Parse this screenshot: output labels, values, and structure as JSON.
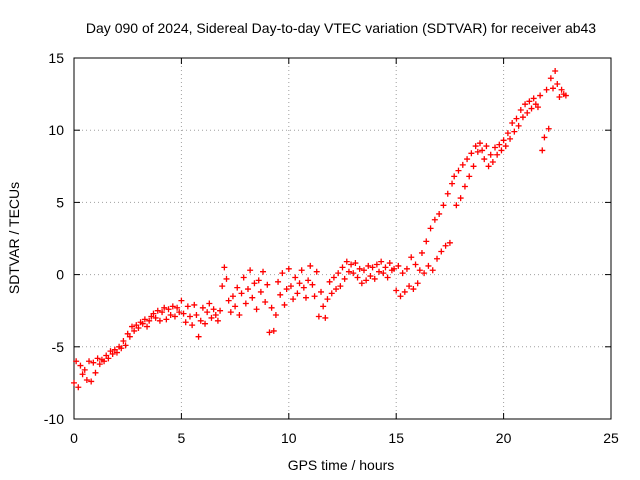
{
  "chart_data": {
    "type": "scatter",
    "title": "Day 090 of 2024, Sidereal Day-to-day VTEC variation (SDTVAR) for receiver ab43",
    "xlabel": "GPS time / hours",
    "ylabel": "SDTVAR / TECUs",
    "xlim": [
      0,
      25
    ],
    "ylim": [
      -10,
      15
    ],
    "xticks": [
      0,
      5,
      10,
      15,
      20,
      25
    ],
    "yticks": [
      -10,
      -5,
      0,
      5,
      10,
      15
    ],
    "xtick_labels": [
      "0",
      "5",
      "10",
      "15",
      "20",
      "25"
    ],
    "ytick_labels": [
      "-10",
      "-5",
      "0",
      "5",
      "10",
      "15"
    ],
    "grid": true,
    "marker": "+",
    "series": [
      {
        "name": "SDTVAR",
        "color": "#ff0000",
        "points": [
          [
            0.0,
            -7.5
          ],
          [
            0.1,
            -6.0
          ],
          [
            0.2,
            -7.8
          ],
          [
            0.3,
            -6.3
          ],
          [
            0.4,
            -6.9
          ],
          [
            0.5,
            -6.6
          ],
          [
            0.6,
            -7.3
          ],
          [
            0.7,
            -6.0
          ],
          [
            0.8,
            -7.4
          ],
          [
            0.9,
            -6.1
          ],
          [
            1.0,
            -6.8
          ],
          [
            1.1,
            -5.8
          ],
          [
            1.2,
            -6.2
          ],
          [
            1.3,
            -5.9
          ],
          [
            1.4,
            -6.0
          ],
          [
            1.5,
            -5.6
          ],
          [
            1.6,
            -5.8
          ],
          [
            1.7,
            -5.3
          ],
          [
            1.8,
            -5.5
          ],
          [
            1.9,
            -5.2
          ],
          [
            2.0,
            -5.4
          ],
          [
            2.1,
            -5.0
          ],
          [
            2.2,
            -5.1
          ],
          [
            2.3,
            -4.6
          ],
          [
            2.4,
            -4.9
          ],
          [
            2.5,
            -4.1
          ],
          [
            2.6,
            -4.3
          ],
          [
            2.7,
            -3.6
          ],
          [
            2.8,
            -3.9
          ],
          [
            2.9,
            -3.5
          ],
          [
            3.0,
            -3.7
          ],
          [
            3.1,
            -3.3
          ],
          [
            3.2,
            -3.4
          ],
          [
            3.3,
            -3.1
          ],
          [
            3.4,
            -3.6
          ],
          [
            3.5,
            -3.2
          ],
          [
            3.6,
            -2.9
          ],
          [
            3.7,
            -2.7
          ],
          [
            3.8,
            -3.0
          ],
          [
            3.9,
            -2.5
          ],
          [
            4.0,
            -3.2
          ],
          [
            4.1,
            -2.6
          ],
          [
            4.2,
            -2.3
          ],
          [
            4.3,
            -3.1
          ],
          [
            4.4,
            -2.4
          ],
          [
            4.5,
            -2.8
          ],
          [
            4.6,
            -2.2
          ],
          [
            4.7,
            -2.9
          ],
          [
            4.8,
            -2.3
          ],
          [
            4.9,
            -2.6
          ],
          [
            5.0,
            -1.8
          ],
          [
            5.1,
            -2.7
          ],
          [
            5.2,
            -3.3
          ],
          [
            5.3,
            -2.2
          ],
          [
            5.4,
            -2.9
          ],
          [
            5.5,
            -3.5
          ],
          [
            5.6,
            -2.1
          ],
          [
            5.7,
            -2.8
          ],
          [
            5.8,
            -4.3
          ],
          [
            5.9,
            -3.2
          ],
          [
            6.0,
            -2.3
          ],
          [
            6.1,
            -3.4
          ],
          [
            6.2,
            -2.6
          ],
          [
            6.3,
            -2.0
          ],
          [
            6.4,
            -3.0
          ],
          [
            6.5,
            -2.4
          ],
          [
            6.6,
            -2.8
          ],
          [
            6.7,
            -3.2
          ],
          [
            6.8,
            -2.5
          ],
          [
            6.9,
            -0.8
          ],
          [
            7.0,
            0.5
          ],
          [
            7.1,
            -0.3
          ],
          [
            7.2,
            -1.8
          ],
          [
            7.3,
            -2.6
          ],
          [
            7.4,
            -1.5
          ],
          [
            7.5,
            -2.2
          ],
          [
            7.6,
            -0.9
          ],
          [
            7.7,
            -2.8
          ],
          [
            7.8,
            -1.3
          ],
          [
            7.9,
            -0.2
          ],
          [
            8.0,
            -2.0
          ],
          [
            8.1,
            -1.0
          ],
          [
            8.2,
            0.3
          ],
          [
            8.3,
            -1.6
          ],
          [
            8.4,
            -0.6
          ],
          [
            8.5,
            -2.4
          ],
          [
            8.6,
            -0.4
          ],
          [
            8.7,
            -1.2
          ],
          [
            8.8,
            0.2
          ],
          [
            8.9,
            -1.9
          ],
          [
            9.0,
            -0.7
          ],
          [
            9.1,
            -4.0
          ],
          [
            9.2,
            -2.3
          ],
          [
            9.3,
            -3.9
          ],
          [
            9.4,
            -2.8
          ],
          [
            9.5,
            -0.5
          ],
          [
            9.6,
            -1.4
          ],
          [
            9.7,
            0.1
          ],
          [
            9.8,
            -2.1
          ],
          [
            9.9,
            -1.0
          ],
          [
            10.0,
            0.4
          ],
          [
            10.1,
            -0.8
          ],
          [
            10.2,
            -1.7
          ],
          [
            10.3,
            -0.2
          ],
          [
            10.4,
            -1.3
          ],
          [
            10.5,
            -0.6
          ],
          [
            10.6,
            0.3
          ],
          [
            10.7,
            -0.9
          ],
          [
            10.8,
            -1.6
          ],
          [
            10.9,
            -0.4
          ],
          [
            11.0,
            0.6
          ],
          [
            11.1,
            -0.7
          ],
          [
            11.2,
            -1.5
          ],
          [
            11.3,
            0.2
          ],
          [
            11.4,
            -2.9
          ],
          [
            11.5,
            -1.2
          ],
          [
            11.6,
            -2.2
          ],
          [
            11.7,
            -3.0
          ],
          [
            11.8,
            -1.7
          ],
          [
            11.9,
            -0.5
          ],
          [
            12.0,
            -1.3
          ],
          [
            12.1,
            -0.2
          ],
          [
            12.2,
            -1.0
          ],
          [
            12.3,
            0.1
          ],
          [
            12.4,
            -0.8
          ],
          [
            12.5,
            0.5
          ],
          [
            12.6,
            -0.3
          ],
          [
            12.7,
            0.9
          ],
          [
            12.8,
            0.2
          ],
          [
            12.9,
            0.7
          ],
          [
            13.0,
            0.1
          ],
          [
            13.1,
            0.8
          ],
          [
            13.2,
            -0.2
          ],
          [
            13.3,
            0.4
          ],
          [
            13.4,
            -0.6
          ],
          [
            13.5,
            0.3
          ],
          [
            13.6,
            -0.4
          ],
          [
            13.7,
            0.6
          ],
          [
            13.8,
            -0.1
          ],
          [
            13.9,
            0.5
          ],
          [
            14.0,
            -0.3
          ],
          [
            14.1,
            0.7
          ],
          [
            14.2,
            0.2
          ],
          [
            14.3,
            0.9
          ],
          [
            14.4,
            0.1
          ],
          [
            14.5,
            0.5
          ],
          [
            14.6,
            -0.2
          ],
          [
            14.7,
            0.8
          ],
          [
            14.8,
            0.3
          ],
          [
            14.9,
            0.4
          ],
          [
            15.0,
            -1.1
          ],
          [
            15.1,
            0.6
          ],
          [
            15.2,
            -1.5
          ],
          [
            15.3,
            0.1
          ],
          [
            15.4,
            -1.2
          ],
          [
            15.5,
            0.4
          ],
          [
            15.6,
            -0.8
          ],
          [
            15.7,
            1.2
          ],
          [
            15.8,
            -1.0
          ],
          [
            15.9,
            0.7
          ],
          [
            16.0,
            -0.6
          ],
          [
            16.1,
            0.3
          ],
          [
            16.2,
            1.5
          ],
          [
            16.3,
            0.1
          ],
          [
            16.4,
            2.3
          ],
          [
            16.5,
            0.6
          ],
          [
            16.6,
            3.2
          ],
          [
            16.7,
            0.3
          ],
          [
            16.8,
            3.8
          ],
          [
            16.9,
            1.1
          ],
          [
            17.0,
            4.2
          ],
          [
            17.1,
            1.6
          ],
          [
            17.2,
            4.8
          ],
          [
            17.3,
            2.0
          ],
          [
            17.4,
            5.6
          ],
          [
            17.5,
            2.2
          ],
          [
            17.6,
            6.3
          ],
          [
            17.7,
            6.8
          ],
          [
            17.8,
            4.8
          ],
          [
            17.9,
            7.2
          ],
          [
            18.0,
            5.3
          ],
          [
            18.1,
            7.6
          ],
          [
            18.2,
            6.1
          ],
          [
            18.3,
            8.0
          ],
          [
            18.4,
            6.8
          ],
          [
            18.5,
            8.4
          ],
          [
            18.6,
            7.5
          ],
          [
            18.7,
            8.9
          ],
          [
            18.8,
            8.5
          ],
          [
            18.9,
            9.1
          ],
          [
            19.0,
            8.6
          ],
          [
            19.1,
            8.0
          ],
          [
            19.2,
            8.9
          ],
          [
            19.3,
            7.5
          ],
          [
            19.4,
            8.3
          ],
          [
            19.5,
            7.8
          ],
          [
            19.6,
            8.8
          ],
          [
            19.7,
            8.3
          ],
          [
            19.8,
            9.0
          ],
          [
            19.9,
            8.6
          ],
          [
            20.0,
            9.3
          ],
          [
            20.1,
            8.9
          ],
          [
            20.2,
            9.8
          ],
          [
            20.3,
            9.4
          ],
          [
            20.4,
            10.5
          ],
          [
            20.5,
            9.9
          ],
          [
            20.6,
            10.8
          ],
          [
            20.7,
            10.3
          ],
          [
            20.8,
            11.4
          ],
          [
            20.9,
            10.9
          ],
          [
            21.0,
            11.8
          ],
          [
            21.1,
            11.2
          ],
          [
            21.2,
            12.0
          ],
          [
            21.3,
            11.5
          ],
          [
            21.4,
            12.2
          ],
          [
            21.5,
            11.8
          ],
          [
            21.6,
            11.6
          ],
          [
            21.7,
            12.4
          ],
          [
            21.8,
            8.6
          ],
          [
            21.9,
            9.5
          ],
          [
            22.0,
            12.8
          ],
          [
            22.1,
            10.1
          ],
          [
            22.2,
            13.6
          ],
          [
            22.3,
            12.9
          ],
          [
            22.4,
            14.1
          ],
          [
            22.5,
            13.2
          ],
          [
            22.6,
            12.3
          ],
          [
            22.7,
            12.8
          ],
          [
            22.8,
            12.5
          ],
          [
            22.9,
            12.4
          ]
        ]
      }
    ]
  }
}
